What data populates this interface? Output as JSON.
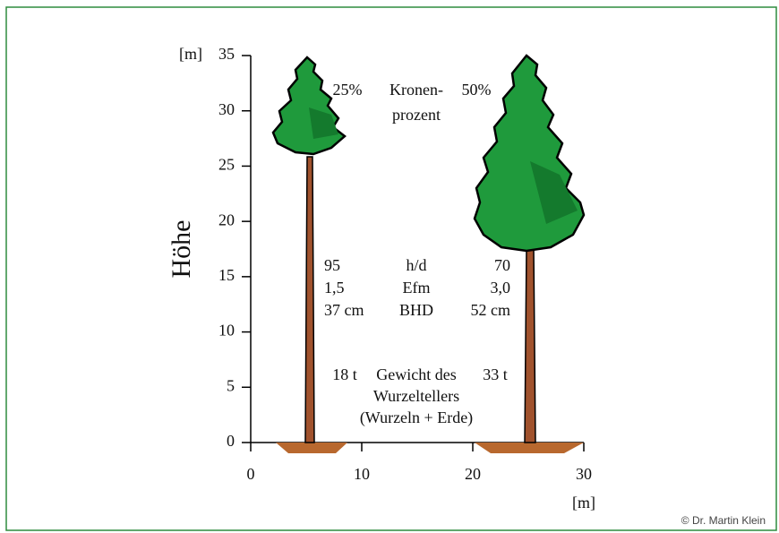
{
  "y_axis": {
    "unit": "[m]",
    "label": "Höhe",
    "ticks": [
      "0",
      "5",
      "10",
      "15",
      "20",
      "25",
      "30",
      "35"
    ]
  },
  "x_axis": {
    "unit": "[m]",
    "ticks": [
      "0",
      "10",
      "20",
      "30"
    ]
  },
  "crown": {
    "left": "25%",
    "label_1": "Kronen-",
    "label_2": "prozent",
    "right": "50%"
  },
  "rows": [
    [
      "95",
      "h/d",
      "70"
    ],
    [
      "1,5",
      "Efm",
      "3,0"
    ],
    [
      "37 cm",
      "BHD",
      "52 cm"
    ]
  ],
  "root": {
    "left": "18 t",
    "label_1": "Gewicht des",
    "right": "33 t",
    "label_2": "Wurzeltellers",
    "label_3": "(Wurzeln + Erde)"
  },
  "credit": "© Dr. Martin Klein"
}
